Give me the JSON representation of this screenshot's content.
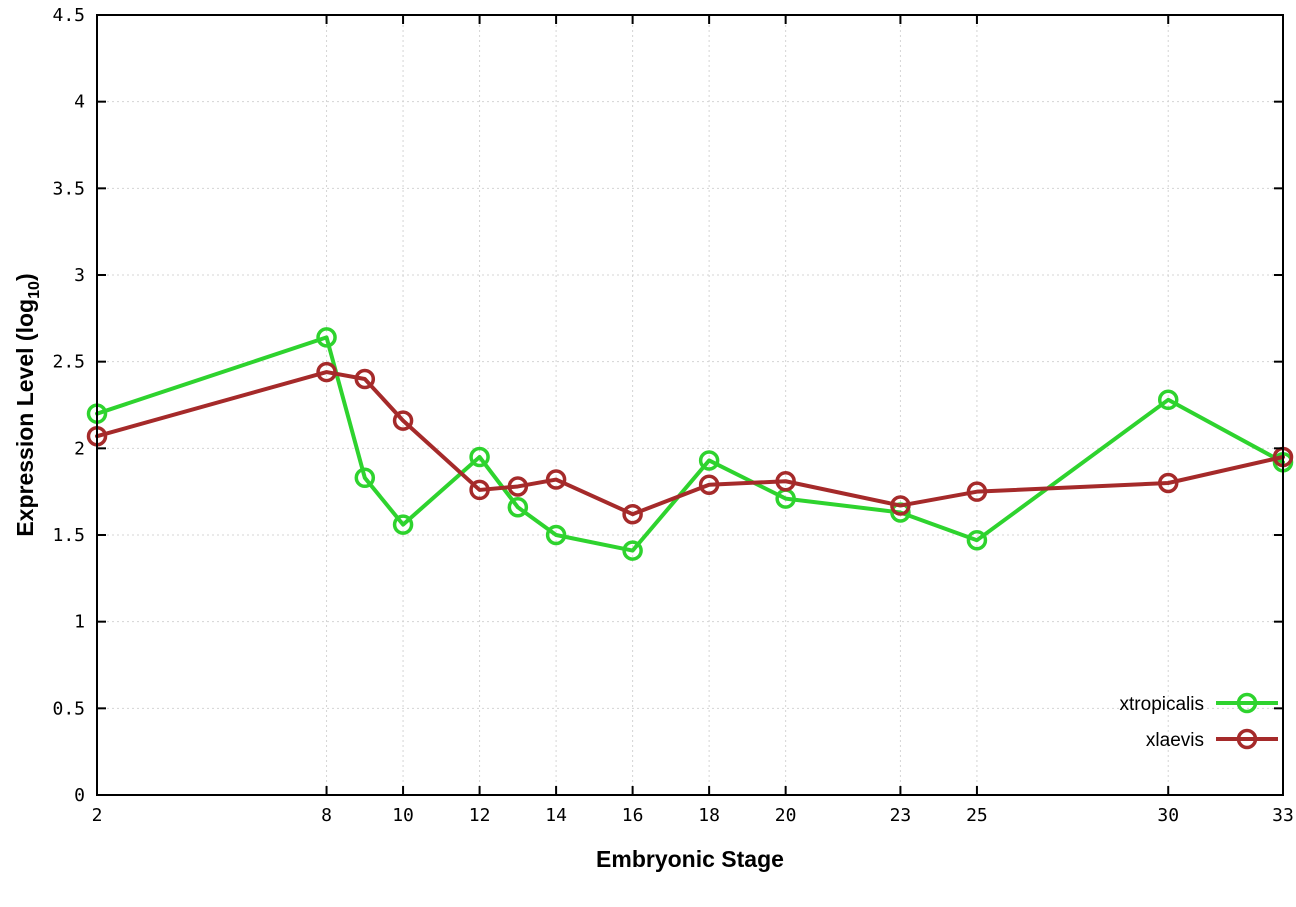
{
  "chart_data": {
    "type": "line",
    "title": "",
    "xlabel": "Embryonic Stage",
    "ylabel": "Expression Level (log10)",
    "ylabel_rich": {
      "prefix": "Expression Level (log",
      "sub": "10",
      "suffix": ")"
    },
    "xlim": [
      2,
      33
    ],
    "ylim": [
      0,
      4.5
    ],
    "xticks": [
      2,
      8,
      10,
      12,
      14,
      16,
      18,
      20,
      23,
      25,
      30,
      33
    ],
    "yticks": [
      0,
      0.5,
      1,
      1.5,
      2,
      2.5,
      3,
      3.5,
      4,
      4.5
    ],
    "grid": true,
    "legend_position": "bottom-right",
    "x": [
      2,
      8,
      9,
      10,
      12,
      13,
      14,
      16,
      18,
      20,
      23,
      25,
      30,
      33
    ],
    "series": [
      {
        "name": "xtropicalis",
        "color": "#2ed32e",
        "values": [
          2.2,
          2.64,
          1.83,
          1.56,
          1.95,
          1.66,
          1.5,
          1.41,
          1.93,
          1.71,
          1.63,
          1.47,
          2.28,
          1.92
        ]
      },
      {
        "name": "xlaevis",
        "color": "#a52a2a",
        "values": [
          2.07,
          2.44,
          2.4,
          2.16,
          1.76,
          1.78,
          1.82,
          1.62,
          1.79,
          1.81,
          1.67,
          1.75,
          1.8,
          1.95
        ]
      }
    ]
  }
}
